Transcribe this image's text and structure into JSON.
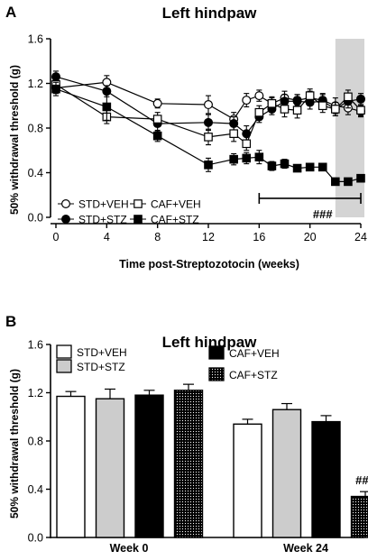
{
  "chart_data": [
    {
      "panel": "A",
      "type": "line",
      "title": "Left hindpaw",
      "xlabel": "Time post-Streptozotocin (weeks)",
      "ylabel": "50% withdrawal threshold (g)",
      "xlim": [
        0,
        24
      ],
      "ylim": [
        0.0,
        1.6
      ],
      "xticks": [
        "0",
        "4",
        "8",
        "12",
        "16",
        "20",
        "24"
      ],
      "yticks": [
        "0.0",
        "0.4",
        "0.8",
        "1.2",
        "1.6"
      ],
      "shaded_region": [
        22,
        24
      ],
      "significance": {
        "label": "###",
        "x_range": [
          16,
          24
        ],
        "y": 0.17
      },
      "legend_placement": "bottom-left",
      "series": [
        {
          "name": "STD+VEH",
          "marker": "circle-open",
          "x": [
            0,
            4,
            8,
            12,
            14,
            15,
            16,
            17,
            18,
            19,
            20,
            21,
            22,
            23,
            24
          ],
          "y": [
            1.16,
            1.21,
            1.02,
            1.01,
            0.88,
            1.05,
            1.09,
            1.02,
            1.07,
            1.05,
            1.07,
            1.05,
            1.0,
            0.98,
            0.95
          ],
          "err": [
            0.05,
            0.06,
            0.04,
            0.08,
            0.06,
            0.06,
            0.05,
            0.05,
            0.06,
            0.05,
            0.06,
            0.06,
            0.07,
            0.06,
            0.05
          ]
        },
        {
          "name": "STD+STZ",
          "marker": "circle-filled",
          "x": [
            0,
            4,
            8,
            12,
            14,
            15,
            16,
            17,
            18,
            19,
            20,
            21,
            22,
            23,
            24
          ],
          "y": [
            1.26,
            1.13,
            0.84,
            0.85,
            0.84,
            0.75,
            0.9,
            0.97,
            1.04,
            1.04,
            1.03,
            1.04,
            0.97,
            1.04,
            1.06
          ],
          "err": [
            0.05,
            0.05,
            0.07,
            0.07,
            0.06,
            0.07,
            0.05,
            0.05,
            0.06,
            0.06,
            0.06,
            0.06,
            0.06,
            0.06,
            0.05
          ]
        },
        {
          "name": "CAF+VEH",
          "marker": "square-open",
          "x": [
            0,
            4,
            8,
            12,
            14,
            15,
            16,
            17,
            18,
            19,
            20,
            21,
            22,
            23,
            24
          ],
          "y": [
            1.19,
            0.9,
            0.88,
            0.72,
            0.75,
            0.66,
            0.94,
            1.02,
            0.97,
            0.96,
            1.09,
            1.0,
            0.97,
            1.08,
            0.96
          ],
          "err": [
            0.06,
            0.06,
            0.06,
            0.07,
            0.07,
            0.06,
            0.06,
            0.06,
            0.07,
            0.07,
            0.06,
            0.06,
            0.06,
            0.06,
            0.05
          ]
        },
        {
          "name": "CAF+STZ",
          "marker": "square-filled",
          "x": [
            0,
            4,
            8,
            12,
            14,
            15,
            16,
            17,
            18,
            19,
            20,
            21,
            22,
            23,
            24
          ],
          "y": [
            1.15,
            0.99,
            0.73,
            0.47,
            0.52,
            0.53,
            0.54,
            0.46,
            0.48,
            0.44,
            0.45,
            0.45,
            0.32,
            0.32,
            0.35
          ],
          "err": [
            0.06,
            0.12,
            0.05,
            0.06,
            0.05,
            0.05,
            0.06,
            0.04,
            0.04,
            0.03,
            0.03,
            0.03,
            0.02,
            0.02,
            0.02
          ]
        }
      ]
    },
    {
      "panel": "B",
      "type": "bar",
      "title": "Left hindpaw",
      "xlabel": "",
      "ylabel": "50% withdrawal threshold (g)",
      "ylim": [
        0.0,
        1.6
      ],
      "yticks": [
        "0.0",
        "0.4",
        "0.8",
        "1.2",
        "1.6"
      ],
      "categories": [
        "Week 0",
        "Week 24"
      ],
      "significance": {
        "label": "###",
        "category": "Week 24",
        "series": "CAF+STZ"
      },
      "legend_placement": "top",
      "series": [
        {
          "name": "STD+VEH",
          "fill": "white",
          "values": [
            1.17,
            0.94
          ],
          "err": [
            0.04,
            0.04
          ]
        },
        {
          "name": "STD+STZ",
          "fill": "lightgray",
          "values": [
            1.15,
            1.06
          ],
          "err": [
            0.08,
            0.05
          ]
        },
        {
          "name": "CAF+VEH",
          "fill": "black",
          "values": [
            1.18,
            0.96
          ],
          "err": [
            0.04,
            0.05
          ]
        },
        {
          "name": "CAF+STZ",
          "fill": "dotted",
          "values": [
            1.22,
            0.34
          ],
          "err": [
            0.05,
            0.04
          ]
        }
      ]
    }
  ],
  "colors": {
    "shade": "#d4d4d4",
    "ink": "#000000",
    "gray_bar": "#cccccc"
  }
}
